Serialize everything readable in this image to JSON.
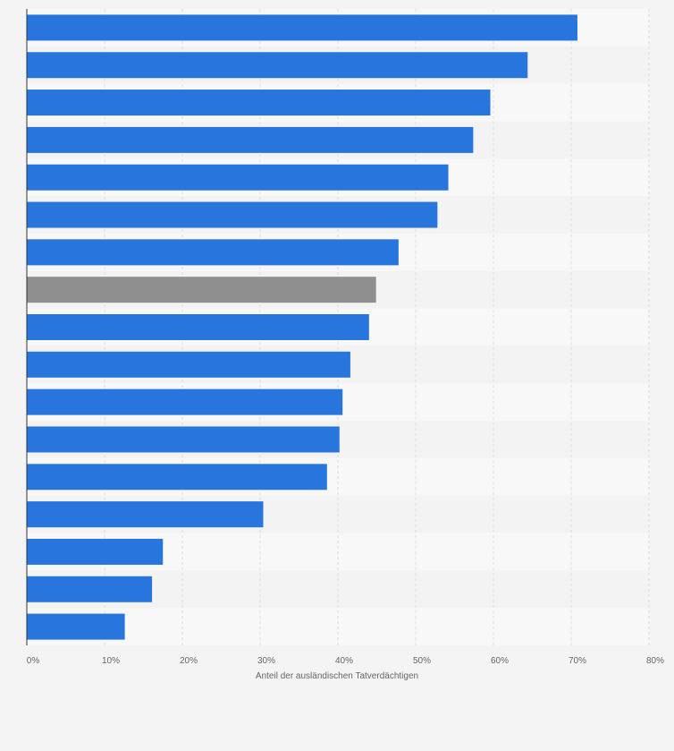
{
  "chart_data": {
    "type": "bar",
    "orientation": "horizontal",
    "title": "",
    "xlabel": "Anteil der ausländischen Tatverdächtigen",
    "ylabel": "",
    "categories": [
      "",
      "",
      "",
      "",
      "",
      "",
      "",
      "",
      "",
      "",
      "",
      "",
      "",
      "",
      "",
      "",
      ""
    ],
    "values": [
      70.8,
      64.4,
      59.6,
      57.4,
      54.2,
      52.8,
      47.8,
      44.9,
      44.0,
      41.6,
      40.6,
      40.2,
      38.6,
      30.4,
      17.5,
      16.1,
      12.6
    ],
    "highlight_index": 7,
    "xlim": [
      0,
      80
    ],
    "xticks": [
      0,
      10,
      20,
      30,
      40,
      50,
      60,
      70,
      80
    ],
    "xtick_labels": [
      "0%",
      "10%",
      "20%",
      "30%",
      "40%",
      "50%",
      "60%",
      "70%",
      "80%"
    ],
    "grid": true,
    "legend": "none",
    "colors": {
      "bar": "#2876dd",
      "highlight": "#8f8f8f",
      "background": "#f4f4f5",
      "band_light": "#f8f8f8",
      "band_dark": "#f3f3f3",
      "grid": "#dcdcdc",
      "axis": "#333333",
      "text": "#666666"
    }
  }
}
